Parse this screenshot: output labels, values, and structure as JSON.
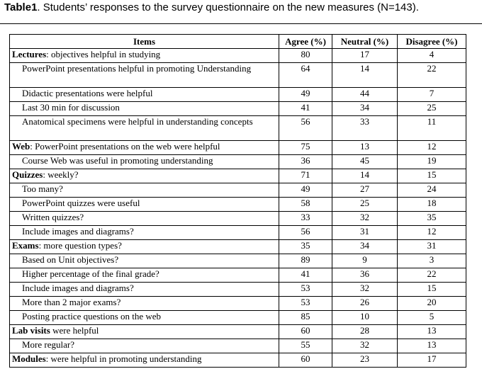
{
  "caption": {
    "label": "Table1",
    "text": ".  Students’ responses to the survey questionnaire on the new measures (N=143)."
  },
  "table": {
    "headers": [
      "Items",
      "Agree (%)",
      "Neutral (%)",
      "Disagree (%)"
    ],
    "rows": [
      {
        "bold": "Lectures",
        "text": ": objectives helpful in studying",
        "sub": false,
        "lines": 1,
        "agree": "80",
        "neutral": "17",
        "disagree": "4"
      },
      {
        "bold": "",
        "text": "PowerPoint presentations helpful in promoting Understanding",
        "sub": true,
        "lines": 2,
        "agree": "64",
        "neutral": "14",
        "disagree": "22"
      },
      {
        "bold": "",
        "text": "Didactic presentations were helpful",
        "sub": true,
        "lines": 1,
        "agree": "49",
        "neutral": "44",
        "disagree": "7"
      },
      {
        "bold": "",
        "text": "Last 30 min for discussion",
        "sub": true,
        "lines": 1,
        "agree": "41",
        "neutral": "34",
        "disagree": "25"
      },
      {
        "bold": "",
        "text": "Anatomical specimens were helpful in understanding concepts",
        "sub": true,
        "lines": 2,
        "agree": "56",
        "neutral": "33",
        "disagree": "11"
      },
      {
        "bold": "Web",
        "text": ": PowerPoint presentations on the web were helpful",
        "sub": false,
        "lines": 1,
        "agree": "75",
        "neutral": "13",
        "disagree": "12"
      },
      {
        "bold": "",
        "text": "Course Web was useful in promoting understanding",
        "sub": true,
        "lines": 1,
        "agree": "36",
        "neutral": "45",
        "disagree": "19"
      },
      {
        "bold": "Quizzes",
        "text": ": weekly?",
        "sub": false,
        "lines": 1,
        "agree": "71",
        "neutral": "14",
        "disagree": "15"
      },
      {
        "bold": "",
        "text": "Too many?",
        "sub": true,
        "lines": 1,
        "agree": "49",
        "neutral": "27",
        "disagree": "24"
      },
      {
        "bold": "",
        "text": "PowerPoint quizzes were useful",
        "sub": true,
        "lines": 1,
        "agree": "58",
        "neutral": "25",
        "disagree": "18"
      },
      {
        "bold": "",
        "text": "Written quizzes?",
        "sub": true,
        "lines": 1,
        "agree": "33",
        "neutral": "32",
        "disagree": "35"
      },
      {
        "bold": "",
        "text": "Include images and diagrams?",
        "sub": true,
        "lines": 1,
        "agree": "56",
        "neutral": "31",
        "disagree": "12"
      },
      {
        "bold": "Exams",
        "text": ":  more question types?",
        "sub": false,
        "lines": 1,
        "agree": "35",
        "neutral": "34",
        "disagree": "31"
      },
      {
        "bold": "",
        "text": "Based on Unit objectives?",
        "sub": true,
        "lines": 1,
        "agree": "89",
        "neutral": "9",
        "disagree": "3"
      },
      {
        "bold": "",
        "text": "Higher percentage of the final grade?",
        "sub": true,
        "lines": 1,
        "agree": "41",
        "neutral": "36",
        "disagree": "22"
      },
      {
        "bold": "",
        "text": "Include images and diagrams?",
        "sub": true,
        "lines": 1,
        "agree": "53",
        "neutral": "32",
        "disagree": "15"
      },
      {
        "bold": "",
        "text": "More than 2 major exams?",
        "sub": true,
        "lines": 1,
        "agree": "53",
        "neutral": "26",
        "disagree": "20"
      },
      {
        "bold": "",
        "text": "Posting practice questions on the web",
        "sub": true,
        "lines": 1,
        "agree": "85",
        "neutral": "10",
        "disagree": "5"
      },
      {
        "bold": "Lab visits",
        "text": " were helpful",
        "sub": false,
        "lines": 1,
        "agree": "60",
        "neutral": "28",
        "disagree": "13"
      },
      {
        "bold": "",
        "text": "More regular?",
        "sub": true,
        "lines": 1,
        "agree": "55",
        "neutral": "32",
        "disagree": "13"
      },
      {
        "bold": "Modules",
        "text": ": were helpful in promoting understanding",
        "sub": false,
        "lines": 1,
        "agree": "60",
        "neutral": "23",
        "disagree": "17"
      }
    ]
  }
}
